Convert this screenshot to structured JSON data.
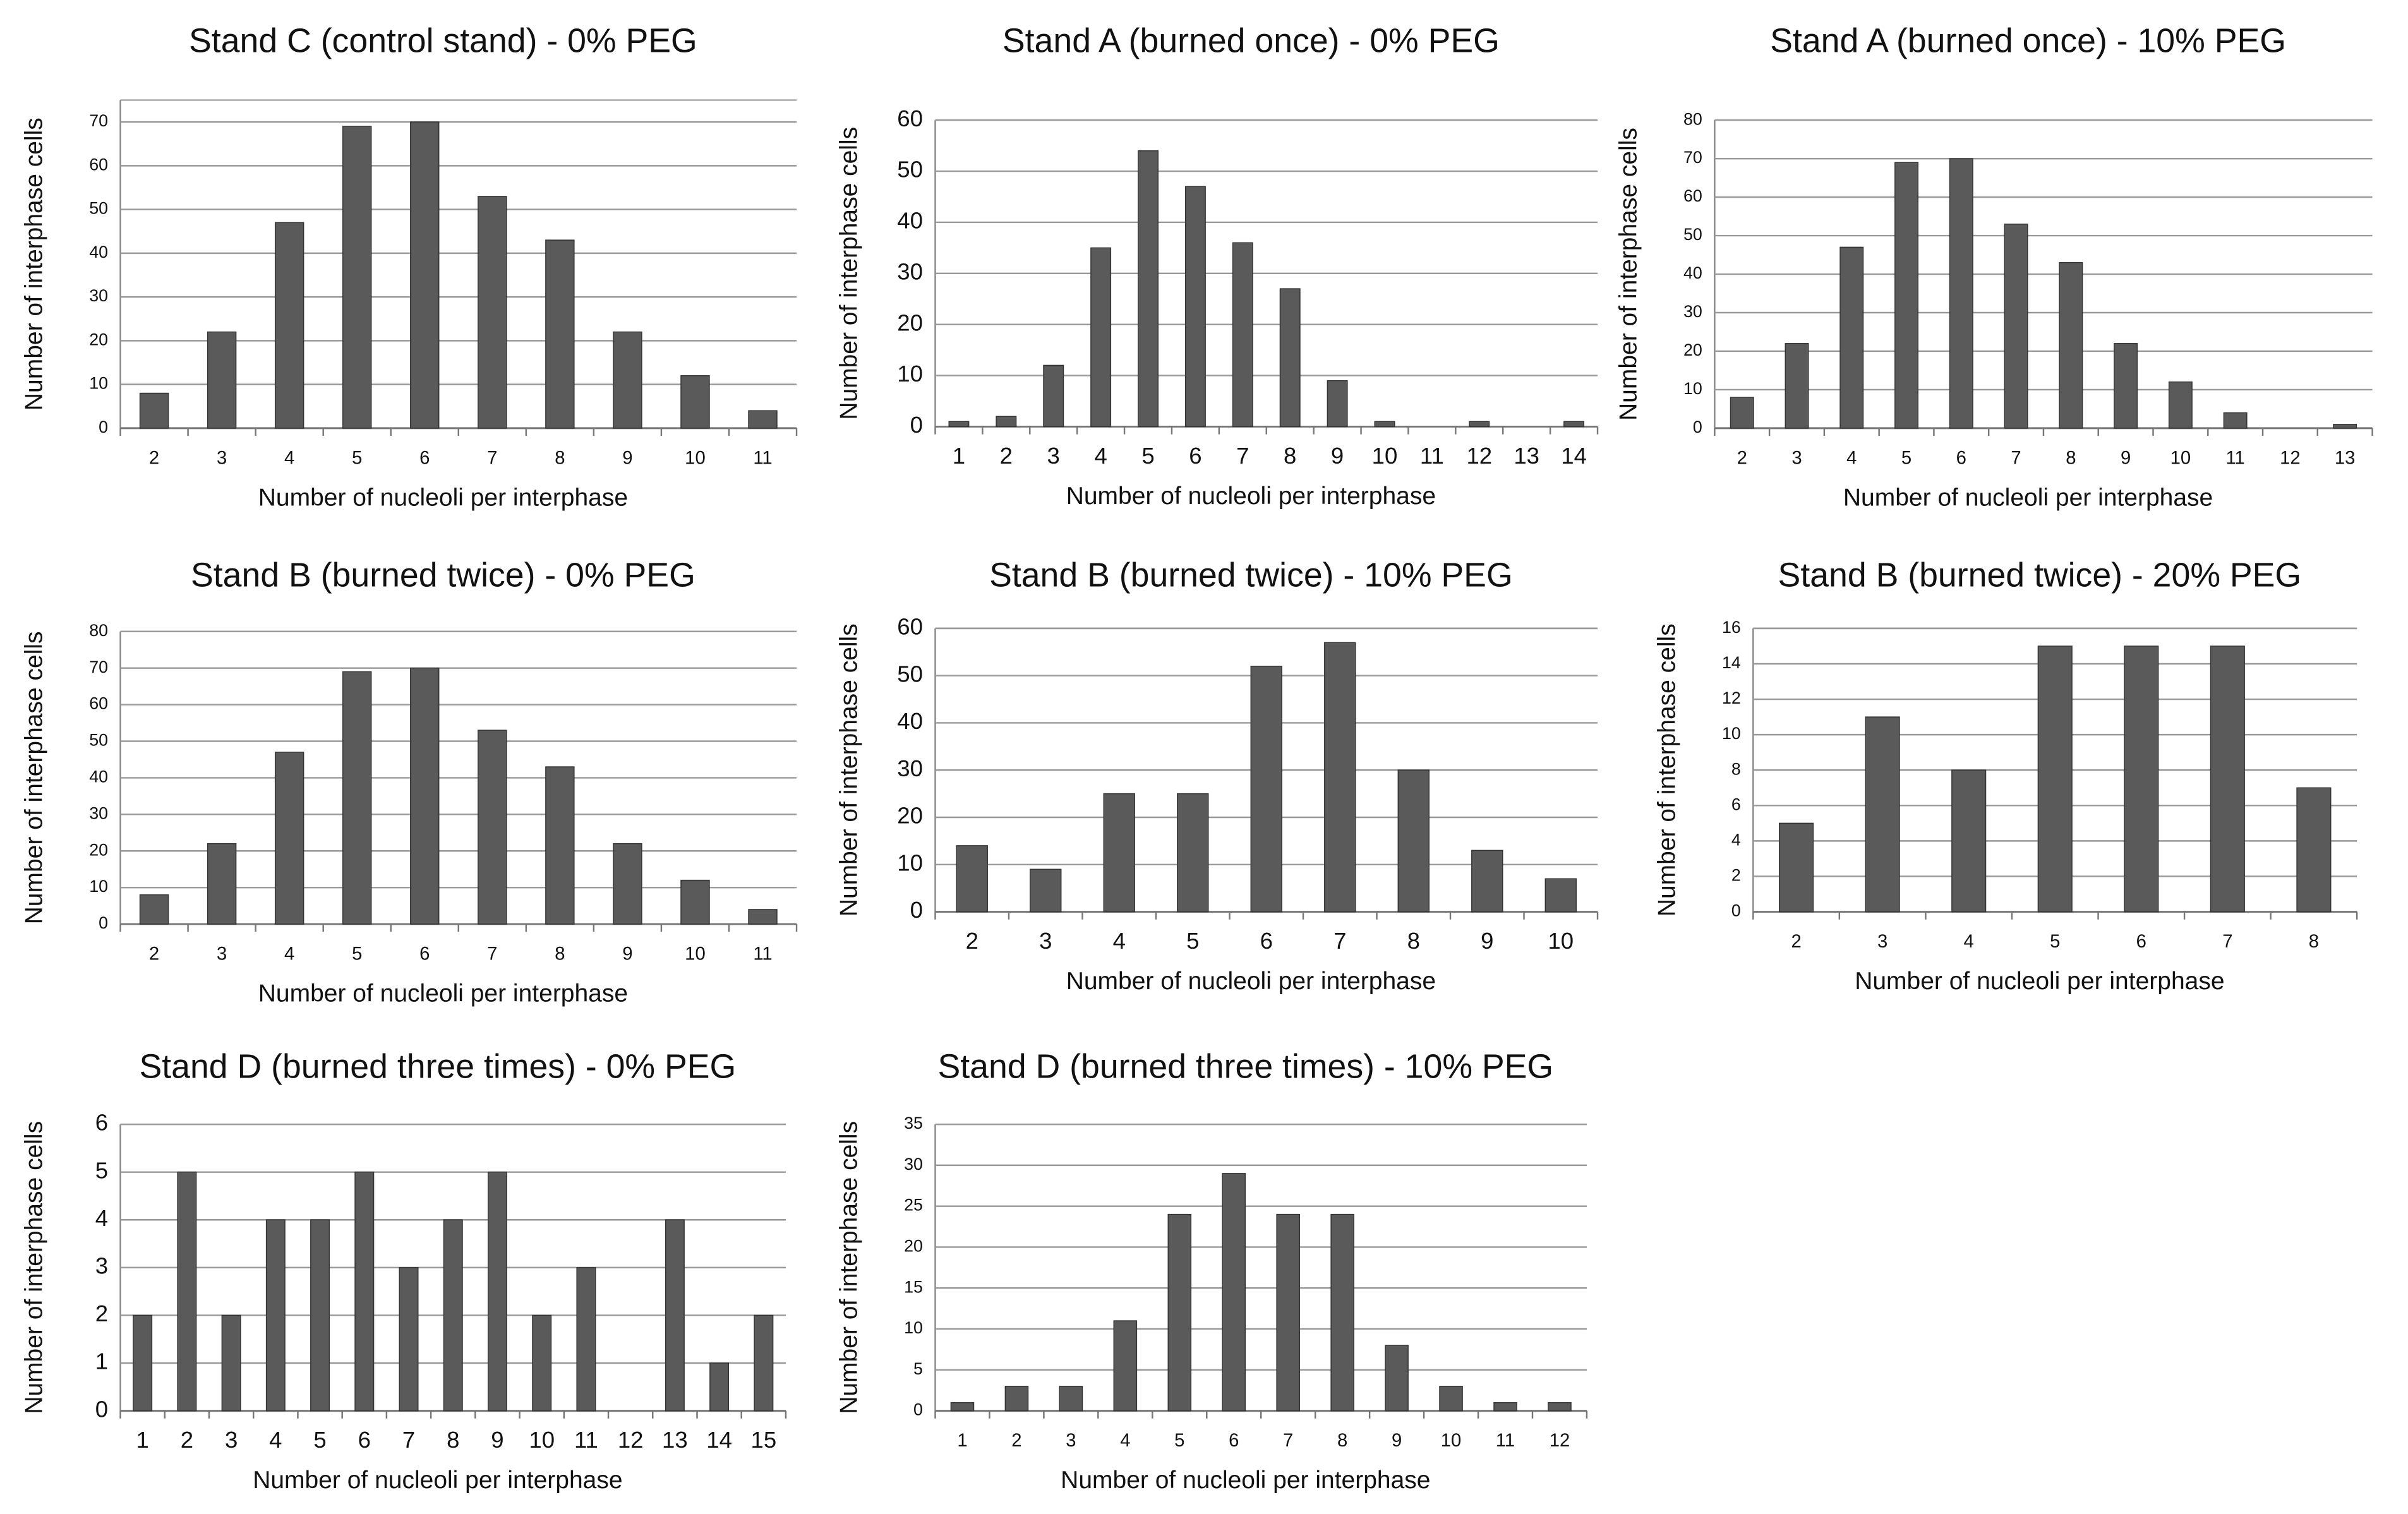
{
  "chart_data": [
    {
      "type": "bar",
      "title": "Stand C (control stand) - 0% PEG",
      "x_label": "Number of nucleoli per interphase",
      "y_label": "Number of interphase cells",
      "categories": [
        "2",
        "3",
        "4",
        "5",
        "6",
        "7",
        "8",
        "9",
        "10",
        "11"
      ],
      "values": [
        8,
        22,
        47,
        69,
        70,
        53,
        43,
        22,
        12,
        4
      ],
      "color": "#5a5a5a",
      "ylim": [
        0,
        75
      ],
      "yticks": [
        0,
        10,
        20,
        30,
        40,
        50,
        60,
        70
      ],
      "grid": true
    },
    {
      "type": "bar",
      "title": "Stand A (burned once) - 0% PEG",
      "x_label": "Number of nucleoli per interphase",
      "y_label": "Number of interphase cells",
      "categories": [
        "1",
        "2",
        "3",
        "4",
        "5",
        "6",
        "7",
        "8",
        "9",
        "10",
        "11",
        "12",
        "13",
        "14"
      ],
      "values": [
        1,
        2,
        12,
        35,
        54,
        47,
        36,
        27,
        9,
        1,
        0,
        1,
        0,
        1
      ],
      "color": "#5a5a5a",
      "ylim": [
        0,
        60
      ],
      "yticks": [
        0,
        10,
        20,
        30,
        40,
        50,
        60
      ],
      "grid": true
    },
    {
      "type": "bar",
      "title": "Stand A (burned once) - 10% PEG",
      "x_label": "Number of nucleoli per interphase",
      "y_label": "Number of interphase cells",
      "categories": [
        "2",
        "3",
        "4",
        "5",
        "6",
        "7",
        "8",
        "9",
        "10",
        "11",
        "12",
        "13"
      ],
      "values": [
        8,
        22,
        47,
        69,
        70,
        53,
        43,
        22,
        12,
        4,
        0,
        1
      ],
      "color": "#5a5a5a",
      "ylim": [
        0,
        80
      ],
      "yticks": [
        0,
        10,
        20,
        30,
        40,
        50,
        60,
        70,
        80
      ],
      "grid": true
    },
    {
      "type": "bar",
      "title": "Stand B (burned twice) - 0% PEG",
      "x_label": "Number of nucleoli per interphase",
      "y_label": "Number of interphase cells",
      "categories": [
        "2",
        "3",
        "4",
        "5",
        "6",
        "7",
        "8",
        "9",
        "10",
        "11"
      ],
      "values": [
        8,
        22,
        47,
        69,
        70,
        53,
        43,
        22,
        12,
        4
      ],
      "color": "#5a5a5a",
      "ylim": [
        0,
        80
      ],
      "yticks": [
        0,
        10,
        20,
        30,
        40,
        50,
        60,
        70,
        80
      ],
      "grid": true
    },
    {
      "type": "bar",
      "title": "Stand B (burned twice) - 10% PEG",
      "x_label": "Number of nucleoli per interphase",
      "y_label": "Number of interphase cells",
      "categories": [
        "2",
        "3",
        "4",
        "5",
        "6",
        "7",
        "8",
        "9",
        "10"
      ],
      "values": [
        14,
        9,
        25,
        25,
        52,
        57,
        30,
        13,
        7
      ],
      "color": "#5a5a5a",
      "ylim": [
        0,
        60
      ],
      "yticks": [
        0,
        10,
        20,
        30,
        40,
        50,
        60
      ],
      "grid": true
    },
    {
      "type": "bar",
      "title": "Stand B (burned twice) - 20% PEG",
      "x_label": "Number of nucleoli per interphase",
      "y_label": "Number of interphase cells",
      "categories": [
        "2",
        "3",
        "4",
        "5",
        "6",
        "7",
        "8"
      ],
      "values": [
        5,
        11,
        8,
        15,
        15,
        15,
        7
      ],
      "color": "#5a5a5a",
      "ylim": [
        0,
        16
      ],
      "yticks": [
        0,
        2,
        4,
        6,
        8,
        10,
        12,
        14,
        16
      ],
      "grid": true
    },
    {
      "type": "bar",
      "title": "Stand D (burned three times) - 0% PEG",
      "x_label": "Number of nucleoli per interphase",
      "y_label": "Number of interphase cells",
      "categories": [
        "1",
        "2",
        "3",
        "4",
        "5",
        "6",
        "7",
        "8",
        "9",
        "10",
        "11",
        "12",
        "13",
        "14",
        "15"
      ],
      "values": [
        2,
        5,
        2,
        4,
        4,
        5,
        3,
        4,
        5,
        2,
        3,
        0,
        4,
        1,
        2
      ],
      "color": "#5a5a5a",
      "ylim": [
        0,
        6
      ],
      "yticks": [
        0,
        1,
        2,
        3,
        4,
        5,
        6
      ],
      "grid": true
    },
    {
      "type": "bar",
      "title": "Stand D (burned three times) - 10% PEG",
      "x_label": "Number of nucleoli per interphase",
      "y_label": "Number of interphase cells",
      "categories": [
        "1",
        "2",
        "3",
        "4",
        "5",
        "6",
        "7",
        "8",
        "9",
        "10",
        "11",
        "12"
      ],
      "values": [
        1,
        3,
        3,
        11,
        24,
        29,
        24,
        24,
        8,
        3,
        1,
        1
      ],
      "color": "#5a5a5a",
      "ylim": [
        0,
        35
      ],
      "yticks": [
        0,
        5,
        10,
        15,
        20,
        25,
        30,
        35
      ],
      "grid": true
    }
  ]
}
